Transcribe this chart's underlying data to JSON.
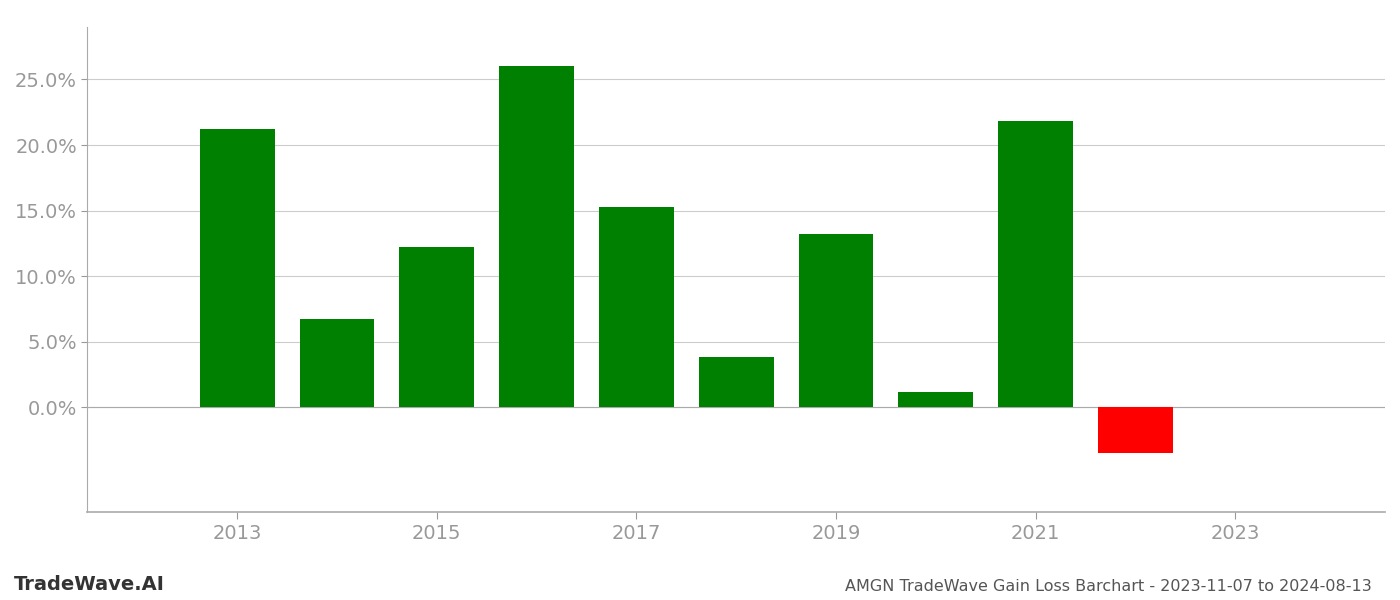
{
  "years": [
    2013,
    2014,
    2015,
    2016,
    2017,
    2018,
    2019,
    2020,
    2021,
    2022
  ],
  "values": [
    0.212,
    0.067,
    0.122,
    0.26,
    0.153,
    0.038,
    0.132,
    0.012,
    0.218,
    -0.035
  ],
  "colors": [
    "#008000",
    "#008000",
    "#008000",
    "#008000",
    "#008000",
    "#008000",
    "#008000",
    "#008000",
    "#008000",
    "#ff0000"
  ],
  "xlim": [
    2011.5,
    2024.5
  ],
  "ylim": [
    -0.08,
    0.29
  ],
  "yticks": [
    0.0,
    0.05,
    0.1,
    0.15,
    0.2,
    0.25
  ],
  "xticks": [
    2013,
    2015,
    2017,
    2019,
    2021,
    2023
  ],
  "bar_width": 0.75,
  "title": "AMGN TradeWave Gain Loss Barchart - 2023-11-07 to 2024-08-13",
  "watermark": "TradeWave.AI",
  "bg_color": "#ffffff",
  "grid_color": "#cccccc",
  "tick_color": "#999999",
  "spine_color": "#aaaaaa",
  "title_color": "#555555",
  "watermark_color": "#333333",
  "title_fontsize": 11.5,
  "watermark_fontsize": 14,
  "tick_fontsize": 14
}
